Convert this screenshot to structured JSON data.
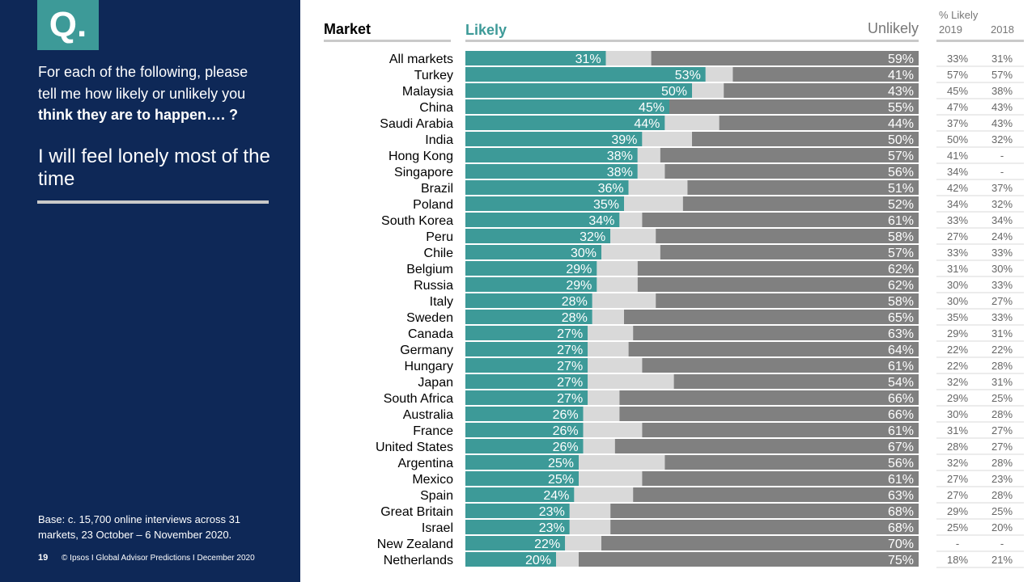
{
  "panel": {
    "q_badge": "Q.",
    "question_line1": "For each of the following, please",
    "question_line2": "tell me how likely or unlikely you",
    "question_line3": "think they are to happen…. ?",
    "statement": "I will feel lonely most of the time",
    "base_note": "Base: c. 15,700 online interviews across 31 markets,  23 October – 6 November 2020.",
    "page_number": "19",
    "footer_text": "© Ipsos I Global Advisor Predictions I December 2020"
  },
  "colors": {
    "panel_bg": "#0e2857",
    "likely": "#3d9a98",
    "neutral": "#d9d9d9",
    "unlikely": "#808080",
    "badge": "#3d9a98"
  },
  "chart_data": {
    "type": "bar",
    "orientation": "horizontal-stacked",
    "headers": {
      "market": "Market",
      "likely": "Likely",
      "unlikely": "Unlikely",
      "trend_title": "% Likely",
      "year_2019": "2019",
      "year_2018": "2018"
    },
    "categories": [
      "All markets",
      "Turkey",
      "Malaysia",
      "China",
      "Saudi Arabia",
      "India",
      "Hong Kong",
      "Singapore",
      "Brazil",
      "Poland",
      "South Korea",
      "Peru",
      "Chile",
      "Belgium",
      "Russia",
      "Italy",
      "Sweden",
      "Canada",
      "Germany",
      "Hungary",
      "Japan",
      "South Africa",
      "Australia",
      "France",
      "United States",
      "Argentina",
      "Mexico",
      "Spain",
      "Great Britain",
      "Israel",
      "New Zealand",
      "Netherlands"
    ],
    "series": [
      {
        "name": "Likely",
        "values": [
          31,
          53,
          50,
          45,
          44,
          39,
          38,
          38,
          36,
          35,
          34,
          32,
          30,
          29,
          29,
          28,
          28,
          27,
          27,
          27,
          27,
          27,
          26,
          26,
          26,
          25,
          25,
          24,
          23,
          23,
          22,
          20
        ]
      },
      {
        "name": "Unlikely",
        "values": [
          59,
          41,
          43,
          55,
          44,
          50,
          57,
          56,
          51,
          52,
          61,
          58,
          57,
          62,
          62,
          58,
          65,
          63,
          64,
          61,
          54,
          66,
          66,
          61,
          67,
          56,
          61,
          63,
          68,
          68,
          70,
          75
        ]
      }
    ],
    "trend_2019": [
      "33%",
      "57%",
      "45%",
      "47%",
      "37%",
      "50%",
      "41%",
      "34%",
      "42%",
      "34%",
      "33%",
      "27%",
      "33%",
      "31%",
      "30%",
      "30%",
      "35%",
      "29%",
      "22%",
      "22%",
      "32%",
      "29%",
      "30%",
      "31%",
      "28%",
      "32%",
      "27%",
      "27%",
      "29%",
      "25%",
      "-",
      "18%"
    ],
    "trend_2018": [
      "31%",
      "57%",
      "38%",
      "43%",
      "43%",
      "32%",
      "-",
      "-",
      "37%",
      "32%",
      "34%",
      "24%",
      "33%",
      "30%",
      "33%",
      "27%",
      "33%",
      "31%",
      "22%",
      "28%",
      "31%",
      "25%",
      "28%",
      "27%",
      "27%",
      "28%",
      "23%",
      "28%",
      "25%",
      "20%",
      "-",
      "21%"
    ],
    "xlim": [
      0,
      100
    ]
  }
}
